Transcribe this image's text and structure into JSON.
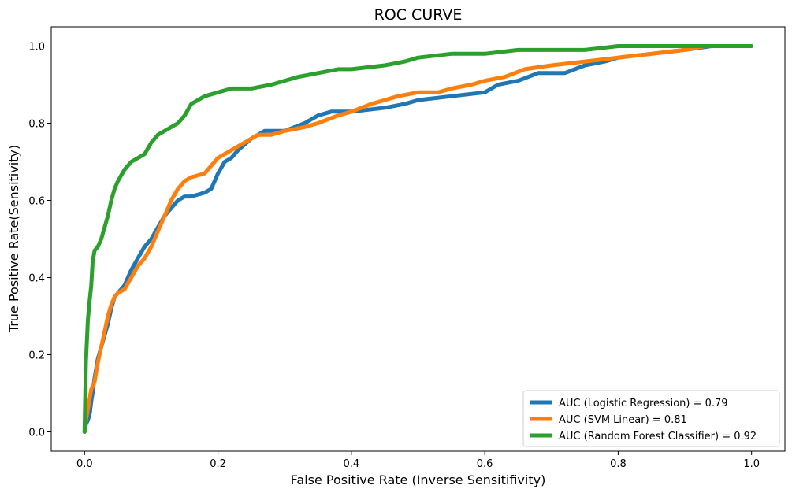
{
  "chart_data": {
    "type": "line",
    "title": "ROC CURVE",
    "xlabel": "False Positive Rate (Inverse Sensitifivity)",
    "ylabel": "True Positive Rate(Sensitivity)",
    "xlim": [
      -0.05,
      1.05
    ],
    "ylim": [
      -0.05,
      1.05
    ],
    "x_ticks": [
      "0.0",
      "0.2",
      "0.4",
      "0.6",
      "0.8",
      "1.0"
    ],
    "y_ticks": [
      "0.0",
      "0.2",
      "0.4",
      "0.6",
      "0.8",
      "1.0"
    ],
    "grid": false,
    "legend_position": "lower-right",
    "series": [
      {
        "name": "AUC (Logistic Regression) = 0.79",
        "color": "#1f77b4",
        "x": [
          0.0,
          0.002,
          0.005,
          0.008,
          0.01,
          0.012,
          0.015,
          0.018,
          0.02,
          0.025,
          0.03,
          0.035,
          0.04,
          0.045,
          0.05,
          0.06,
          0.07,
          0.08,
          0.09,
          0.1,
          0.11,
          0.12,
          0.13,
          0.14,
          0.15,
          0.16,
          0.18,
          0.19,
          0.2,
          0.21,
          0.22,
          0.23,
          0.25,
          0.27,
          0.28,
          0.3,
          0.33,
          0.35,
          0.37,
          0.4,
          0.45,
          0.48,
          0.5,
          0.55,
          0.6,
          0.62,
          0.65,
          0.68,
          0.72,
          0.75,
          0.78,
          0.8,
          0.85,
          0.9,
          0.94
        ],
        "y": [
          0.0,
          0.02,
          0.03,
          0.05,
          0.08,
          0.1,
          0.14,
          0.17,
          0.19,
          0.22,
          0.25,
          0.28,
          0.32,
          0.35,
          0.36,
          0.38,
          0.42,
          0.45,
          0.48,
          0.5,
          0.53,
          0.56,
          0.58,
          0.6,
          0.61,
          0.61,
          0.62,
          0.63,
          0.67,
          0.7,
          0.71,
          0.73,
          0.76,
          0.78,
          0.78,
          0.78,
          0.8,
          0.82,
          0.83,
          0.83,
          0.84,
          0.85,
          0.86,
          0.87,
          0.88,
          0.9,
          0.91,
          0.93,
          0.93,
          0.95,
          0.96,
          0.97,
          0.98,
          0.99,
          1.0
        ]
      },
      {
        "name": "AUC (SVM Linear) = 0.81",
        "color": "#ff7f0e",
        "x": [
          0.0,
          0.002,
          0.005,
          0.008,
          0.01,
          0.015,
          0.02,
          0.025,
          0.03,
          0.035,
          0.04,
          0.045,
          0.05,
          0.06,
          0.07,
          0.08,
          0.09,
          0.1,
          0.11,
          0.12,
          0.13,
          0.14,
          0.15,
          0.16,
          0.18,
          0.19,
          0.2,
          0.22,
          0.24,
          0.26,
          0.28,
          0.3,
          0.33,
          0.35,
          0.38,
          0.4,
          0.43,
          0.47,
          0.5,
          0.53,
          0.55,
          0.58,
          0.6,
          0.63,
          0.66,
          0.7,
          0.75,
          0.8,
          0.85,
          0.9,
          0.93
        ],
        "y": [
          0.0,
          0.03,
          0.06,
          0.09,
          0.11,
          0.13,
          0.18,
          0.22,
          0.26,
          0.3,
          0.33,
          0.35,
          0.36,
          0.37,
          0.4,
          0.43,
          0.45,
          0.48,
          0.52,
          0.56,
          0.6,
          0.63,
          0.65,
          0.66,
          0.67,
          0.69,
          0.71,
          0.73,
          0.75,
          0.77,
          0.77,
          0.78,
          0.79,
          0.8,
          0.82,
          0.83,
          0.85,
          0.87,
          0.88,
          0.88,
          0.89,
          0.9,
          0.91,
          0.92,
          0.94,
          0.95,
          0.96,
          0.97,
          0.98,
          0.99,
          1.0
        ]
      },
      {
        "name": "AUC (Random Forest Classifier) = 0.92",
        "color": "#2ca02c",
        "x": [
          0.0,
          0.001,
          0.002,
          0.003,
          0.005,
          0.007,
          0.01,
          0.012,
          0.015,
          0.02,
          0.025,
          0.03,
          0.035,
          0.04,
          0.045,
          0.05,
          0.06,
          0.07,
          0.08,
          0.09,
          0.1,
          0.11,
          0.12,
          0.13,
          0.14,
          0.15,
          0.16,
          0.17,
          0.18,
          0.2,
          0.22,
          0.25,
          0.28,
          0.3,
          0.32,
          0.35,
          0.38,
          0.4,
          0.45,
          0.48,
          0.5,
          0.55,
          0.6,
          0.65,
          0.7,
          0.75,
          0.8,
          0.85,
          0.9,
          1.0
        ],
        "y": [
          0.0,
          0.1,
          0.18,
          0.22,
          0.29,
          0.33,
          0.38,
          0.44,
          0.47,
          0.48,
          0.5,
          0.53,
          0.56,
          0.6,
          0.63,
          0.65,
          0.68,
          0.7,
          0.71,
          0.72,
          0.75,
          0.77,
          0.78,
          0.79,
          0.8,
          0.82,
          0.85,
          0.86,
          0.87,
          0.88,
          0.89,
          0.89,
          0.9,
          0.91,
          0.92,
          0.93,
          0.94,
          0.94,
          0.95,
          0.96,
          0.97,
          0.98,
          0.98,
          0.99,
          0.99,
          0.99,
          1.0,
          1.0,
          1.0,
          1.0
        ]
      }
    ]
  }
}
